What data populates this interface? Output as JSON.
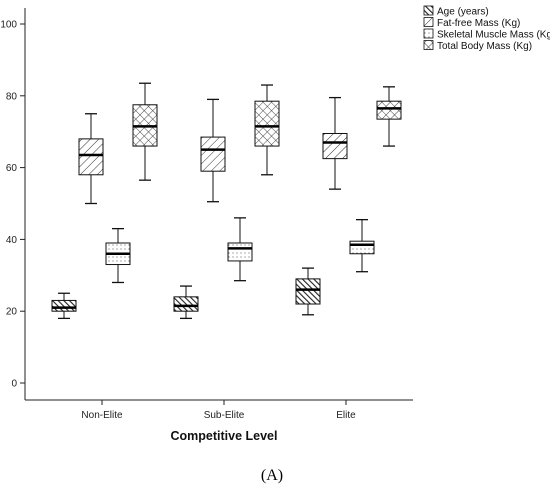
{
  "chart_data": {
    "type": "boxplot",
    "xlabel": "Competitive Level",
    "ylabel": "",
    "ylim": [
      0,
      100
    ],
    "yticks": [
      0,
      20,
      40,
      60,
      80,
      100
    ],
    "grid": false,
    "legend_position": "top-right",
    "categories": [
      "Non-Elite",
      "Sub-Elite",
      "Elite"
    ],
    "series": [
      {
        "name": "Age (years)",
        "pattern": "dense-diagonal",
        "boxes": [
          {
            "min": 18,
            "q1": 20,
            "median": 21,
            "q3": 23,
            "max": 25
          },
          {
            "min": 18,
            "q1": 20,
            "median": 21.5,
            "q3": 24,
            "max": 27
          },
          {
            "min": 19,
            "q1": 22,
            "median": 26,
            "q3": 29,
            "max": 32
          }
        ]
      },
      {
        "name": "Fat-free Mass (Kg)",
        "pattern": "diagonal",
        "boxes": [
          {
            "min": 50,
            "q1": 58,
            "median": 63.5,
            "q3": 68,
            "max": 75
          },
          {
            "min": 50.5,
            "q1": 59,
            "median": 65,
            "q3": 68.5,
            "max": 79
          },
          {
            "min": 54,
            "q1": 62.5,
            "median": 67,
            "q3": 69.5,
            "max": 79.5
          }
        ]
      },
      {
        "name": "Skeletal Muscle Mass (Kg)",
        "pattern": "dots",
        "boxes": [
          {
            "min": 28,
            "q1": 33,
            "median": 36,
            "q3": 39,
            "max": 43
          },
          {
            "min": 28.5,
            "q1": 34,
            "median": 37.5,
            "q3": 39,
            "max": 46
          },
          {
            "min": 31,
            "q1": 36,
            "median": 38.5,
            "q3": 39.5,
            "max": 45.5
          }
        ]
      },
      {
        "name": "Total Body Mass (Kg)",
        "pattern": "crosshatch",
        "boxes": [
          {
            "min": 56.5,
            "q1": 66,
            "median": 71.5,
            "q3": 77.5,
            "max": 83.5
          },
          {
            "min": 58,
            "q1": 66,
            "median": 71.5,
            "q3": 78.5,
            "max": 83
          },
          {
            "min": 66,
            "q1": 73.5,
            "median": 76.5,
            "q3": 78.5,
            "max": 82.5
          }
        ]
      }
    ]
  },
  "panel_label": "(A)"
}
